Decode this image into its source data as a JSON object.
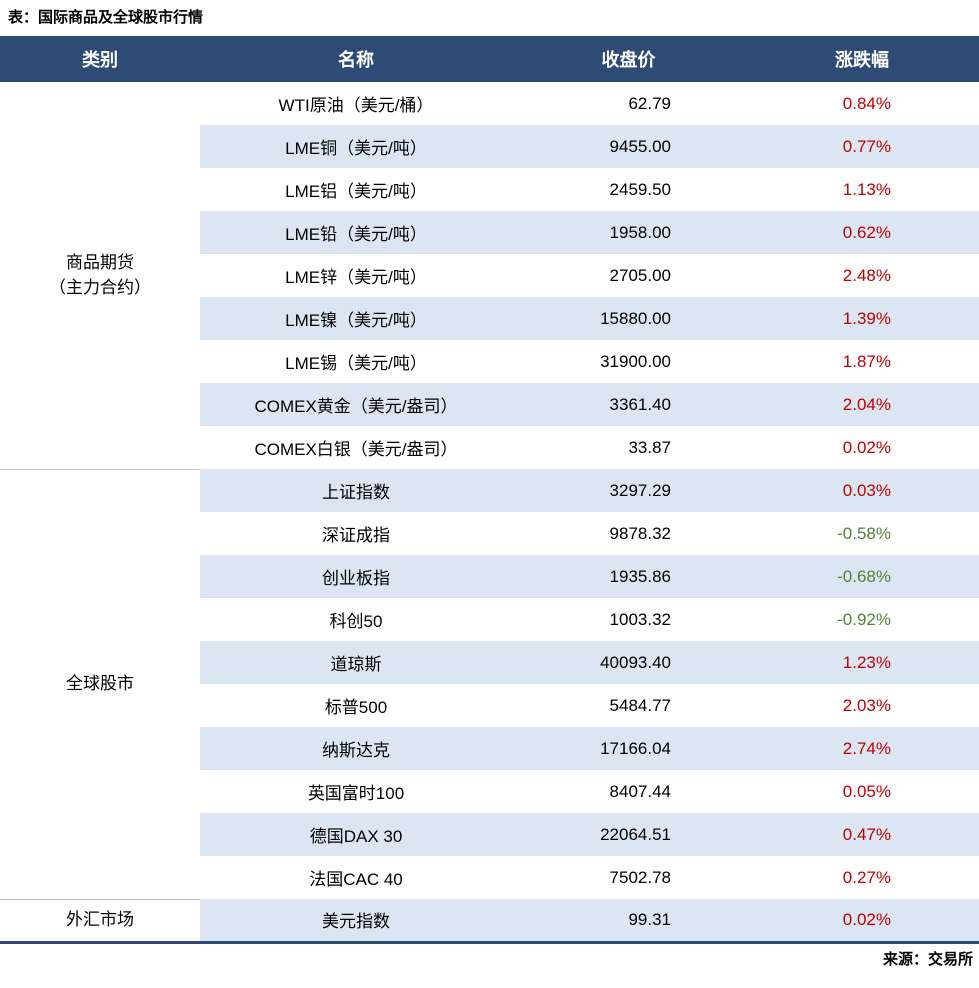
{
  "page": {
    "title": "表：国际商品及全球股市行情"
  },
  "footer": {
    "source": "来源：交易所"
  },
  "colors": {
    "header_bg": "#2d4b75",
    "header_text": "#ffffff",
    "row_bg": "#ffffff",
    "row_alt_bg": "#dce6f2",
    "positive": "#c00000",
    "negative": "#548235",
    "divider": "#b7c0ca",
    "bottom_line": "#2d4b75",
    "text": "#000000"
  },
  "chart_data": {
    "type": "table",
    "title": "表：国际商品及全球股市行情",
    "columns": [
      "类别",
      "名称",
      "收盘价",
      "涨跌幅"
    ],
    "groups": [
      {
        "category": "商品期货（主力合约）",
        "category_lines": [
          "商品期货",
          "（主力合约）"
        ],
        "rows": [
          {
            "name": "WTI原油（美元/桶）",
            "close": "62.79",
            "change": "0.84%",
            "direction": "up"
          },
          {
            "name": "LME铜（美元/吨）",
            "close": "9455.00",
            "change": "0.77%",
            "direction": "up"
          },
          {
            "name": "LME铝（美元/吨）",
            "close": "2459.50",
            "change": "1.13%",
            "direction": "up"
          },
          {
            "name": "LME铅（美元/吨）",
            "close": "1958.00",
            "change": "0.62%",
            "direction": "up"
          },
          {
            "name": "LME锌（美元/吨）",
            "close": "2705.00",
            "change": "2.48%",
            "direction": "up"
          },
          {
            "name": "LME镍（美元/吨）",
            "close": "15880.00",
            "change": "1.39%",
            "direction": "up"
          },
          {
            "name": "LME锡（美元/吨）",
            "close": "31900.00",
            "change": "1.87%",
            "direction": "up"
          },
          {
            "name": "COMEX黄金（美元/盎司）",
            "close": "3361.40",
            "change": "2.04%",
            "direction": "up"
          },
          {
            "name": "COMEX白银（美元/盎司）",
            "close": "33.87",
            "change": "0.02%",
            "direction": "up"
          }
        ]
      },
      {
        "category": "全球股市",
        "category_lines": [
          "全球股市"
        ],
        "rows": [
          {
            "name": "上证指数",
            "close": "3297.29",
            "change": "0.03%",
            "direction": "up"
          },
          {
            "name": "深证成指",
            "close": "9878.32",
            "change": "-0.58%",
            "direction": "down"
          },
          {
            "name": "创业板指",
            "close": "1935.86",
            "change": "-0.68%",
            "direction": "down"
          },
          {
            "name": "科创50",
            "close": "1003.32",
            "change": "-0.92%",
            "direction": "down"
          },
          {
            "name": "道琼斯",
            "close": "40093.40",
            "change": "1.23%",
            "direction": "up"
          },
          {
            "name": "标普500",
            "close": "5484.77",
            "change": "2.03%",
            "direction": "up"
          },
          {
            "name": "纳斯达克",
            "close": "17166.04",
            "change": "2.74%",
            "direction": "up"
          },
          {
            "name": "英国富时100",
            "close": "8407.44",
            "change": "0.05%",
            "direction": "up"
          },
          {
            "name": "德国DAX 30",
            "close": "22064.51",
            "change": "0.47%",
            "direction": "up"
          },
          {
            "name": "法国CAC 40",
            "close": "7502.78",
            "change": "0.27%",
            "direction": "up"
          }
        ]
      },
      {
        "category": "外汇市场",
        "category_lines": [
          "外汇市场"
        ],
        "rows": [
          {
            "name": "美元指数",
            "close": "99.31",
            "change": "0.02%",
            "direction": "up"
          }
        ]
      }
    ]
  }
}
